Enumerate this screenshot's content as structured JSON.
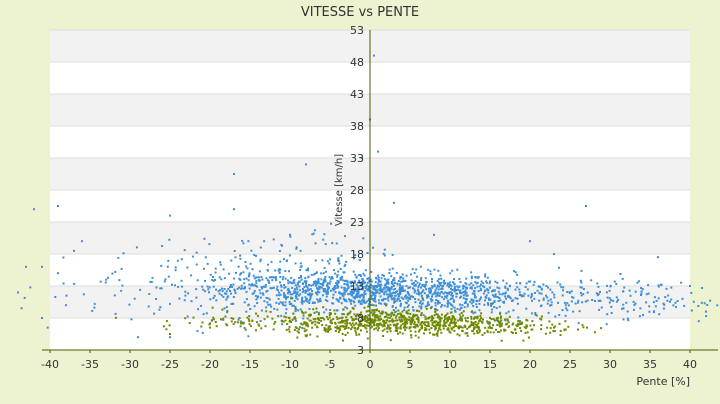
{
  "chart_data": {
    "type": "scatter",
    "title": "VITESSE vs PENTE",
    "xlabel": "Pente [%]",
    "ylabel": "Vitesse [km/h]",
    "xlim": [
      -40,
      40
    ],
    "ylim": [
      3,
      53
    ],
    "x_ticks": [
      -40,
      -35,
      -30,
      -25,
      -20,
      -15,
      -10,
      -5,
      0,
      5,
      10,
      15,
      20,
      25,
      30,
      35,
      40
    ],
    "y_ticks": [
      3,
      8,
      13,
      18,
      23,
      28,
      33,
      38,
      43,
      48,
      53
    ],
    "grid": "horizontal bands",
    "legend": "none",
    "series": [
      {
        "color": "#3D8FD9",
        "clusters": [
          {
            "x_center": 0,
            "x_spread": 9,
            "y_center": 12.3,
            "y_spread": 1.4,
            "count": 900
          },
          {
            "x_center": -12,
            "x_spread": 7,
            "y_center": 13.0,
            "y_spread": 2.5,
            "count": 250
          },
          {
            "x_center": 15,
            "x_spread": 10,
            "y_center": 11.2,
            "y_spread": 1.6,
            "count": 350
          },
          {
            "x_center": -30,
            "x_spread": 7,
            "y_center": 13.0,
            "y_spread": 3.5,
            "count": 60
          },
          {
            "x_center": 33,
            "x_spread": 6,
            "y_center": 10.5,
            "y_spread": 1.6,
            "count": 80
          },
          {
            "x_center": -7,
            "x_spread": 5,
            "y_center": 18.5,
            "y_spread": 2.0,
            "count": 50
          }
        ],
        "outliers": [
          [
            0.5,
            49
          ],
          [
            0,
            39
          ],
          [
            1,
            34
          ],
          [
            -1,
            33
          ],
          [
            -8,
            32
          ],
          [
            -17,
            30.5
          ],
          [
            -39,
            25.5
          ],
          [
            -42,
            25
          ],
          [
            3,
            26
          ],
          [
            -17,
            25
          ],
          [
            -25,
            24
          ],
          [
            27,
            25.5
          ],
          [
            -36,
            20
          ],
          [
            -10,
            21
          ],
          [
            8,
            21
          ],
          [
            20,
            20
          ],
          [
            -37,
            18.5
          ],
          [
            23,
            18
          ],
          [
            36,
            17.5
          ],
          [
            -41,
            8
          ],
          [
            -29,
            5
          ],
          [
            -25,
            5
          ],
          [
            -38,
            10
          ],
          [
            42,
            9
          ],
          [
            -44,
            12
          ],
          [
            40,
            13
          ],
          [
            -43,
            16
          ],
          [
            -41,
            16
          ],
          [
            -39,
            15
          ]
        ]
      },
      {
        "color": "#6E8A00",
        "clusters": [
          {
            "x_center": 4,
            "x_spread": 7,
            "y_center": 7.5,
            "y_spread": 1.0,
            "count": 600
          },
          {
            "x_center": -6,
            "x_spread": 6,
            "y_center": 7.2,
            "y_spread": 1.0,
            "count": 150
          },
          {
            "x_center": 16,
            "x_spread": 5,
            "y_center": 6.6,
            "y_spread": 0.7,
            "count": 120
          },
          {
            "x_center": -20,
            "x_spread": 4,
            "y_center": 7.5,
            "y_spread": 0.6,
            "count": 30
          }
        ],
        "outliers": [
          [
            -25,
            5.5
          ],
          [
            -20,
            6.5
          ],
          [
            23,
            6.5
          ],
          [
            26,
            6.2
          ],
          [
            0,
            10.5
          ],
          [
            2,
            10
          ]
        ]
      }
    ]
  }
}
